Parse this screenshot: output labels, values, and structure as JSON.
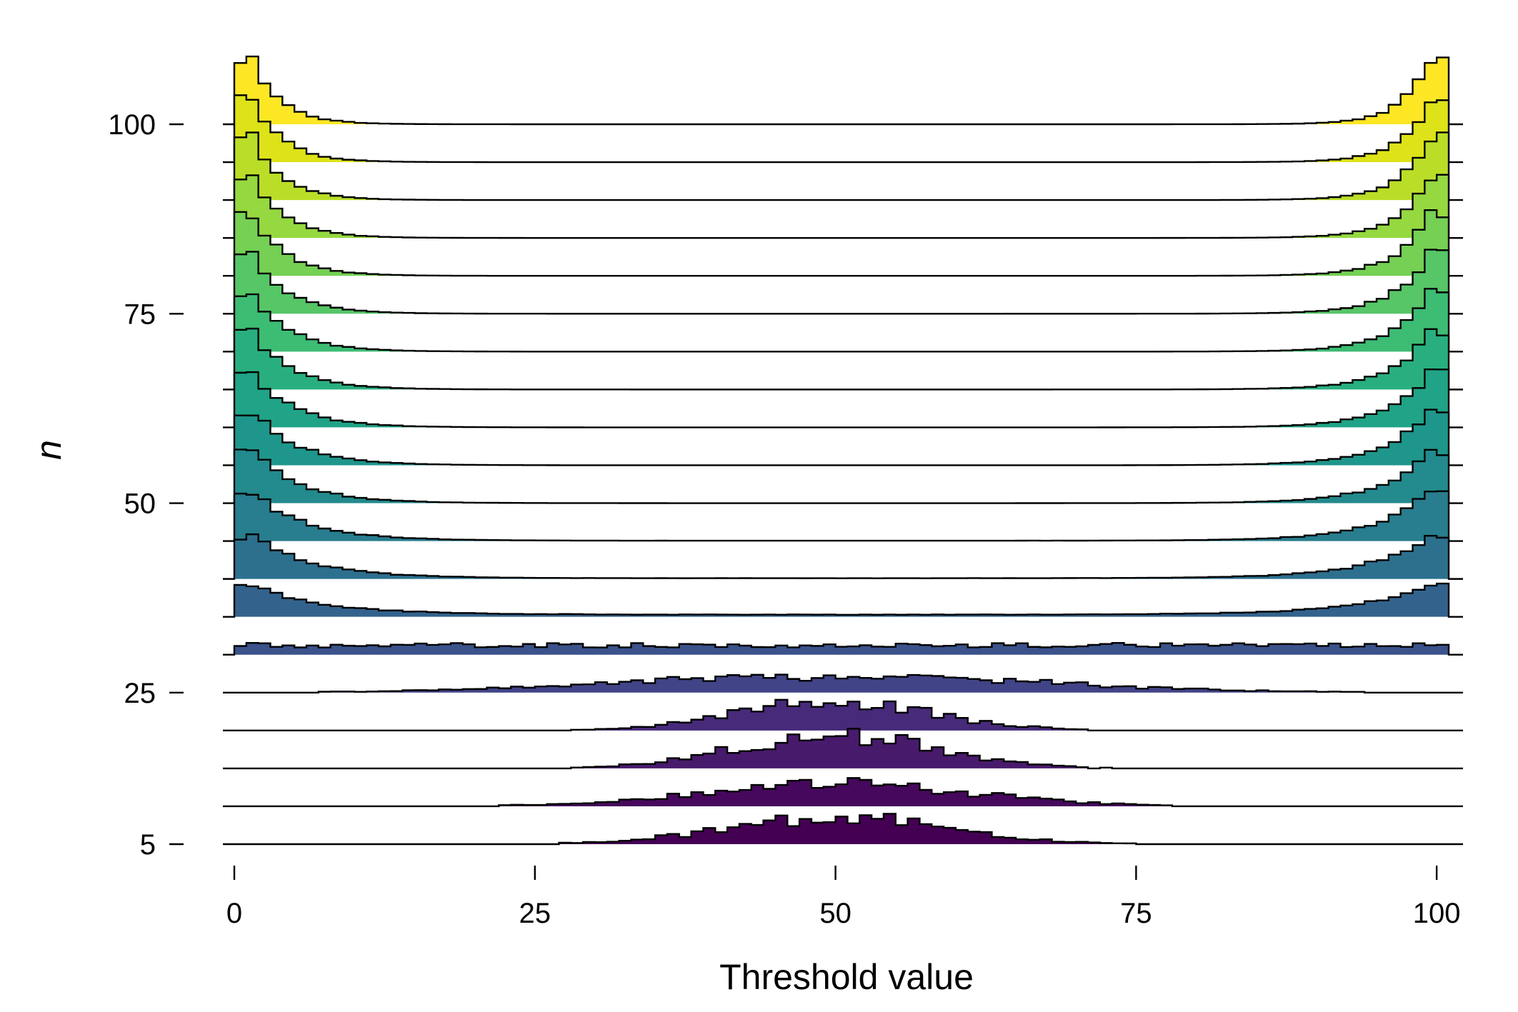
{
  "chart_data": {
    "type": "ridgeline-histogram",
    "xlabel": "Threshold value",
    "ylabel": "n",
    "xlim": [
      0,
      100
    ],
    "x_ticks": [
      0,
      25,
      50,
      75,
      100
    ],
    "y_ticks": [
      5,
      25,
      50,
      75,
      100
    ],
    "bin_width": 1,
    "colormap": "viridis",
    "series": [
      {
        "n": 5,
        "color": "#440154",
        "shape": "center",
        "sigma": 9,
        "height": 0.72
      },
      {
        "n": 10,
        "color": "#46085c",
        "shape": "center",
        "sigma": 11,
        "height": 0.6
      },
      {
        "n": 15,
        "color": "#481a6c",
        "shape": "center",
        "sigma": 8,
        "height": 0.93
      },
      {
        "n": 20,
        "color": "#472a7a",
        "shape": "center",
        "sigma": 8,
        "height": 0.75
      },
      {
        "n": 25,
        "color": "#414487",
        "shape": "center",
        "sigma": 17,
        "height": 0.45
      },
      {
        "n": 30,
        "color": "#3b528b",
        "shape": "flat",
        "level": 0.26
      },
      {
        "n": 35,
        "color": "#33638d",
        "shape": "edges",
        "height": 0.78,
        "decay": 6,
        "base": 0.06
      },
      {
        "n": 40,
        "color": "#2d708e",
        "shape": "edges",
        "height": 1.13,
        "decay": 5,
        "base": 0.02
      },
      {
        "n": 45,
        "color": "#287d8e",
        "shape": "edges",
        "height": 1.3,
        "decay": 4.5,
        "base": 0.01
      },
      {
        "n": 50,
        "color": "#238a8d",
        "shape": "edges",
        "height": 1.4,
        "decay": 4,
        "base": 0.0
      },
      {
        "n": 55,
        "color": "#1f968b",
        "shape": "edges",
        "height": 1.45,
        "decay": 3.8,
        "base": 0.0
      },
      {
        "n": 60,
        "color": "#20a386",
        "shape": "edges",
        "height": 1.5,
        "decay": 3.5,
        "base": 0.0
      },
      {
        "n": 65,
        "color": "#29af7f",
        "shape": "edges",
        "height": 1.55,
        "decay": 3.3,
        "base": 0.0
      },
      {
        "n": 70,
        "color": "#3dbc74",
        "shape": "edges",
        "height": 1.6,
        "decay": 3.1,
        "base": 0.0
      },
      {
        "n": 75,
        "color": "#56c667",
        "shape": "edges",
        "height": 1.62,
        "decay": 3.0,
        "base": 0.0
      },
      {
        "n": 80,
        "color": "#75d054",
        "shape": "edges",
        "height": 1.65,
        "decay": 2.8,
        "base": 0.0
      },
      {
        "n": 85,
        "color": "#95d840",
        "shape": "edges",
        "height": 1.68,
        "decay": 2.7,
        "base": 0.0
      },
      {
        "n": 90,
        "color": "#bade28",
        "shape": "edges",
        "height": 1.7,
        "decay": 2.6,
        "base": 0.0
      },
      {
        "n": 95,
        "color": "#dde318",
        "shape": "edges",
        "height": 1.72,
        "decay": 2.5,
        "base": 0.0
      },
      {
        "n": 100,
        "color": "#fde725",
        "shape": "edges",
        "height": 1.75,
        "decay": 2.4,
        "base": 0.0
      }
    ]
  }
}
